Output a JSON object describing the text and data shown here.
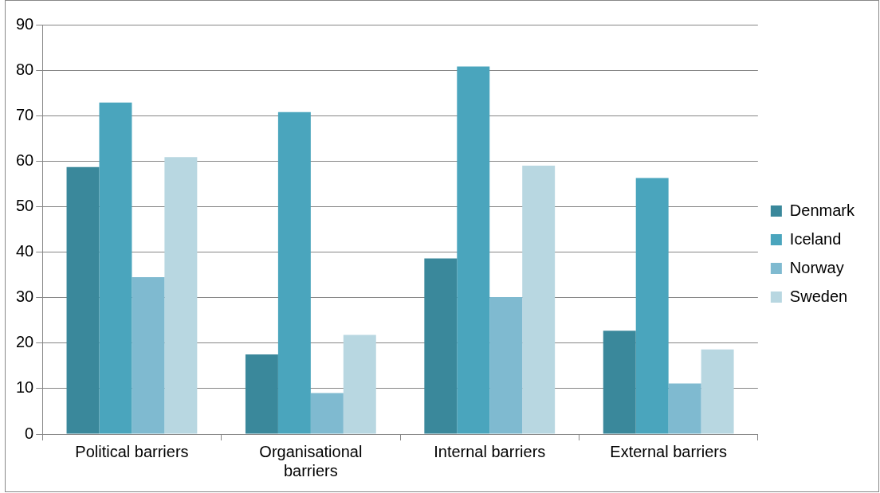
{
  "chart_data": {
    "type": "bar",
    "categories": [
      "Political barriers",
      "Organisational barriers",
      "Internal barriers",
      "External barriers"
    ],
    "series": [
      {
        "name": "Denmark",
        "color": "#3a889b",
        "values": [
          58.7,
          17.5,
          38.6,
          22.7
        ]
      },
      {
        "name": "Iceland",
        "color": "#4aa5bd",
        "values": [
          72.9,
          70.8,
          80.8,
          56.3
        ]
      },
      {
        "name": "Norway",
        "color": "#7fbad0",
        "values": [
          34.5,
          9.0,
          30.1,
          11.1
        ]
      },
      {
        "name": "Sweden",
        "color": "#b8d7e1",
        "values": [
          60.9,
          21.8,
          59.0,
          18.6
        ]
      }
    ],
    "ylim": [
      0,
      90
    ],
    "yticks": [
      0,
      10,
      20,
      30,
      40,
      50,
      60,
      70,
      80,
      90
    ],
    "grid": "y",
    "legend": "right"
  }
}
